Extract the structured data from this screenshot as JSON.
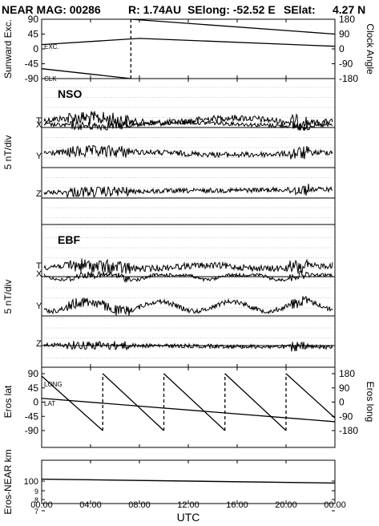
{
  "header": {
    "title": "NEAR MAG: 00286",
    "range": "R: 1.74AU",
    "selong": "SElong: -52.52 E",
    "selat": "SElat:",
    "selat_value": "4.27 N"
  },
  "chart_data": [
    {
      "id": "sunward",
      "type": "line",
      "ylabel": "Sunward Exc.",
      "ylabel_right": "Clock Angle",
      "left_ticks": [
        "90",
        "45",
        "0",
        "-45",
        "-90"
      ],
      "right_ticks": [
        "180",
        "90",
        "0",
        "-90",
        "-180"
      ],
      "ylim": [
        -90,
        90
      ],
      "y2lim": [
        -180,
        180
      ],
      "annotations": [
        "EXC.",
        "CLK"
      ],
      "series": [
        {
          "name": "EXC.",
          "axis": "left",
          "x": [
            0,
            8,
            24
          ],
          "y": [
            13,
            32,
            8
          ]
        },
        {
          "name": "CLK",
          "axis": "right",
          "dashed_jump_at": 7.3,
          "x": [
            0,
            7.3,
            7.3,
            24
          ],
          "y": [
            -120,
            -180,
            180,
            90
          ]
        }
      ]
    },
    {
      "id": "nso",
      "type": "line",
      "panel_label": "NSO",
      "ylabel": "5 nT/div",
      "trace_labels": [
        "T",
        "X",
        "Y",
        "Z"
      ]
    },
    {
      "id": "ebf",
      "type": "line",
      "panel_label": "EBF",
      "ylabel": "5 nT/div",
      "trace_labels": [
        "T",
        "X",
        "Y",
        "Z"
      ]
    },
    {
      "id": "eros",
      "type": "line",
      "ylabel": "Eros lat",
      "ylabel_right": "Eros long",
      "left_ticks": [
        "90",
        "45",
        "0",
        "-45",
        "-90"
      ],
      "right_ticks": [
        "180",
        "90",
        "0",
        "-90",
        "-180"
      ],
      "ylim": [
        -90,
        90
      ],
      "y2lim": [
        -180,
        180
      ],
      "annotations": [
        "LONG",
        "LAT"
      ],
      "series": [
        {
          "name": "LAT",
          "axis": "left",
          "x": [
            0,
            24
          ],
          "y": [
            12,
            -62
          ]
        },
        {
          "name": "LONG",
          "axis": "right",
          "x": [
            0,
            5,
            5,
            10,
            10,
            15,
            15,
            20,
            20,
            24
          ],
          "y": [
            165,
            -180,
            180,
            -180,
            180,
            -180,
            180,
            -180,
            180,
            -100
          ]
        }
      ]
    },
    {
      "id": "distance",
      "type": "line",
      "ylabel": "Eros-NEAR km",
      "log_scale": true,
      "left_ticks": [
        "100",
        "9",
        "8",
        "7"
      ],
      "series": [
        {
          "name": "Eros-NEAR",
          "x": [
            0,
            24
          ],
          "y": [
            104,
            96
          ]
        }
      ]
    }
  ],
  "xaxis": {
    "xlabel": "UTC",
    "ticks": [
      "00:00",
      "04:00",
      "08:00",
      "12:00",
      "16:00",
      "20:00",
      "00:00"
    ],
    "xlim": [
      0,
      24
    ]
  }
}
